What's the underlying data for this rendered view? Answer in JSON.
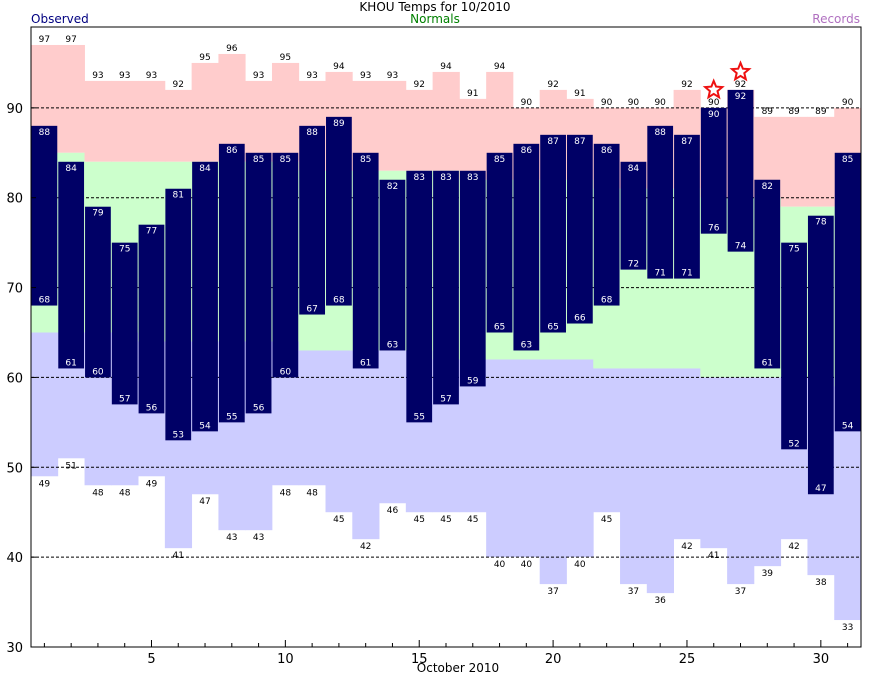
{
  "chart_data": {
    "type": "bar",
    "title": "KHOU Temps for 10/2010",
    "legend": {
      "observed": "Observed",
      "normals": "Normals",
      "records": "Records"
    },
    "xlabel": "October 2010",
    "ylim": [
      30,
      99
    ],
    "xlim": [
      0.5,
      31.5
    ],
    "yticks": [
      30,
      40,
      50,
      60,
      70,
      80,
      90
    ],
    "xticks": [
      5,
      10,
      15,
      20,
      25,
      30
    ],
    "days": [
      1,
      2,
      3,
      4,
      5,
      6,
      7,
      8,
      9,
      10,
      11,
      12,
      13,
      14,
      15,
      16,
      17,
      18,
      19,
      20,
      21,
      22,
      23,
      24,
      25,
      26,
      27,
      28,
      29,
      30,
      31
    ],
    "observed_high": [
      88,
      84,
      79,
      75,
      77,
      81,
      84,
      86,
      85,
      85,
      88,
      89,
      85,
      82,
      83,
      83,
      83,
      85,
      86,
      87,
      87,
      86,
      84,
      88,
      87,
      90,
      92,
      82,
      75,
      78,
      85
    ],
    "observed_low": [
      68,
      61,
      60,
      57,
      56,
      53,
      54,
      55,
      56,
      60,
      67,
      68,
      61,
      63,
      55,
      57,
      59,
      65,
      63,
      65,
      66,
      68,
      72,
      71,
      71,
      76,
      74,
      61,
      52,
      47,
      54
    ],
    "normal_high": [
      85,
      85,
      84,
      84,
      84,
      84,
      84,
      84,
      84,
      84,
      83,
      83,
      83,
      83,
      83,
      83,
      82,
      82,
      82,
      82,
      82,
      81,
      81,
      81,
      81,
      80,
      80,
      80,
      79,
      79,
      79
    ],
    "normal_low": [
      65,
      65,
      65,
      65,
      64,
      64,
      64,
      64,
      64,
      64,
      63,
      63,
      63,
      63,
      63,
      62,
      62,
      62,
      62,
      62,
      62,
      61,
      61,
      61,
      61,
      60,
      60,
      60,
      60,
      60,
      59
    ],
    "record_high": [
      97,
      97,
      93,
      93,
      93,
      92,
      95,
      96,
      93,
      95,
      93,
      94,
      93,
      93,
      92,
      94,
      91,
      94,
      90,
      92,
      91,
      90,
      90,
      90,
      92,
      90,
      92,
      89,
      89,
      89,
      90
    ],
    "record_low": [
      49,
      51,
      48,
      48,
      49,
      41,
      47,
      43,
      43,
      48,
      48,
      45,
      42,
      46,
      45,
      45,
      45,
      40,
      40,
      37,
      40,
      45,
      37,
      36,
      42,
      41,
      37,
      39,
      42,
      38,
      33
    ],
    "record_set_days": [
      26,
      27
    ],
    "colors": {
      "observed": "#000066",
      "normal": "#ccffcc",
      "record_high": "#ffcccc",
      "record_low": "#ccccff",
      "star": "#ee1111",
      "records_legend": "#b070c0",
      "normals_legend": "#008000"
    }
  }
}
